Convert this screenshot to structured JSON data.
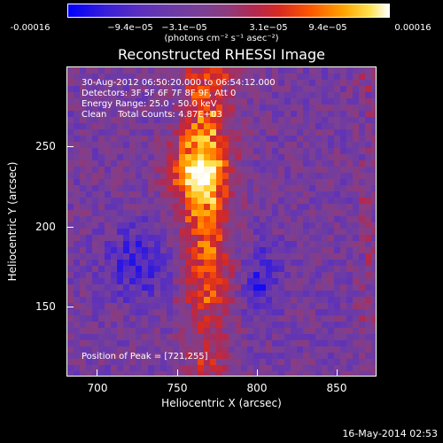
{
  "colorbar": {
    "tick_labels": [
      "-0.00016",
      "−9.4e−05",
      "−3.1e−05",
      "3.1e−05",
      "9.4e−05",
      "0.00016"
    ],
    "units": "(photons cm⁻² s⁻¹ asec⁻²)"
  },
  "title": "Reconstructed RHESSI Image",
  "annotations": {
    "time_range": "30-Aug-2012 06:50:20.000 to 06:54:12.000",
    "detectors": "Detectors: 3F 5F 6F 7F 8F 9F, Att 0",
    "energy": "Energy Range: 25.0 - 50.0 keV",
    "method": "Clean    Total Counts: 4.87E+03",
    "peak": "Position of Peak = [721,255]"
  },
  "axes": {
    "xlabel": "Heliocentric X (arcsec)",
    "ylabel": "Heliocentric Y (arcsec)",
    "x_ticks": [
      "700",
      "750",
      "800",
      "850"
    ],
    "y_ticks": [
      "150",
      "200",
      "250"
    ]
  },
  "footer": {
    "date": "16-May-2014 02:53"
  }
}
